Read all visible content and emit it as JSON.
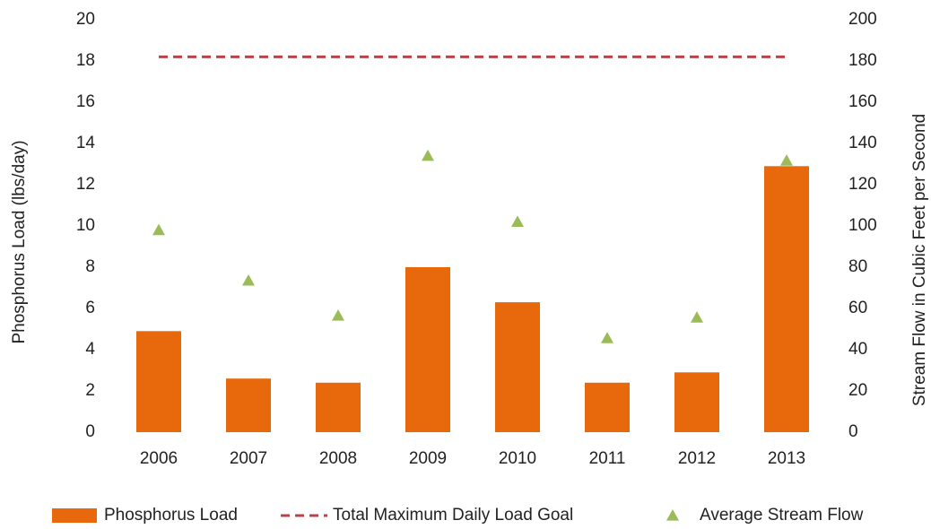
{
  "chart_data": {
    "type": "bar",
    "categories": [
      "2006",
      "2007",
      "2008",
      "2009",
      "2010",
      "2011",
      "2012",
      "2013"
    ],
    "series": [
      {
        "name": "Phosphorus Load",
        "type": "bar",
        "color": "#e8690b",
        "values": [
          4.9,
          2.6,
          2.4,
          8.0,
          6.3,
          2.4,
          2.9,
          12.9
        ]
      },
      {
        "name": "Total Maximum Daily Load Goal",
        "type": "line",
        "dashed": true,
        "color": "#b8434a",
        "values": [
          18.2,
          18.2,
          18.2,
          18.2,
          18.2,
          18.2,
          18.2,
          18.2
        ]
      },
      {
        "name": "Average Stream Flow",
        "type": "scatter",
        "marker": "triangle",
        "color": "#9bbb59",
        "axis": "y2",
        "values": [
          98,
          73.5,
          56.5,
          134,
          102,
          45.6,
          55.6,
          131.7
        ]
      }
    ],
    "ylabel": "Phosphorus  Load (lbs/day)",
    "y2label": "Stream Flow in Cubic  Feet per Second",
    "ylim": [
      0,
      20
    ],
    "yticks": [
      0,
      2,
      4,
      6,
      8,
      10,
      12,
      14,
      16,
      18,
      20
    ],
    "y2lim": [
      0,
      200
    ],
    "y2ticks": [
      0,
      20,
      40,
      60,
      80,
      100,
      120,
      140,
      160,
      180,
      200
    ],
    "grid": false,
    "legend": "bottom"
  }
}
